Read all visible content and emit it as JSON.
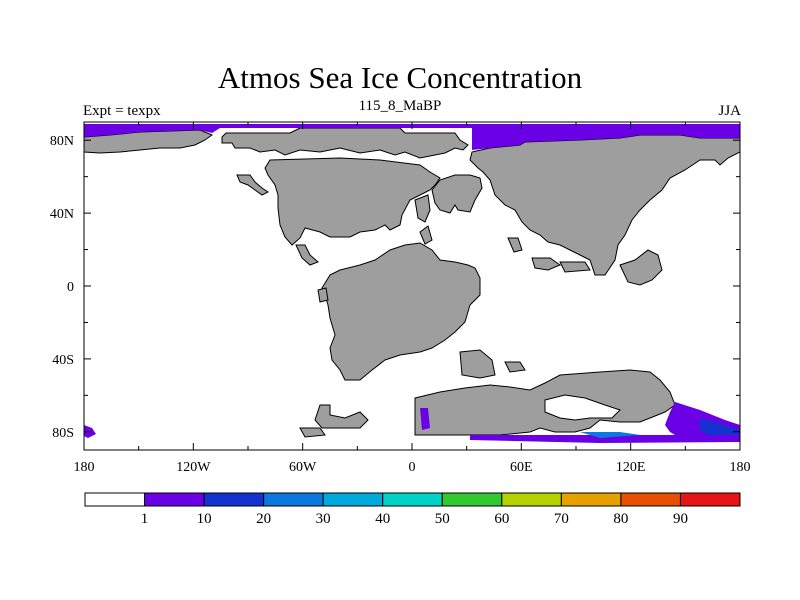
{
  "title": "Atmos Sea Ice Concentration",
  "subtitle_left": "Expt = texpx",
  "subtitle_center": "115_8_MaBP",
  "subtitle_right": "JJA",
  "x_ticks": [
    "180",
    "120W",
    "60W",
    "0",
    "60E",
    "120E",
    "180"
  ],
  "y_ticks": [
    "80N",
    "40N",
    "0",
    "40S",
    "80S"
  ],
  "colorbar": {
    "labels": [
      "1",
      "10",
      "20",
      "30",
      "40",
      "50",
      "60",
      "70",
      "80",
      "90"
    ],
    "colors": [
      "#ffffff",
      "#6a00e6",
      "#1432d2",
      "#0a78dc",
      "#00aadc",
      "#00d2c8",
      "#32c832",
      "#b4d200",
      "#e6a000",
      "#e65000",
      "#e61414"
    ]
  },
  "colors": {
    "land": "#9e9e9e",
    "ice_low": "#6a00e6",
    "ice_mid": "#1432d2",
    "ice_high": "#0a78dc"
  }
}
